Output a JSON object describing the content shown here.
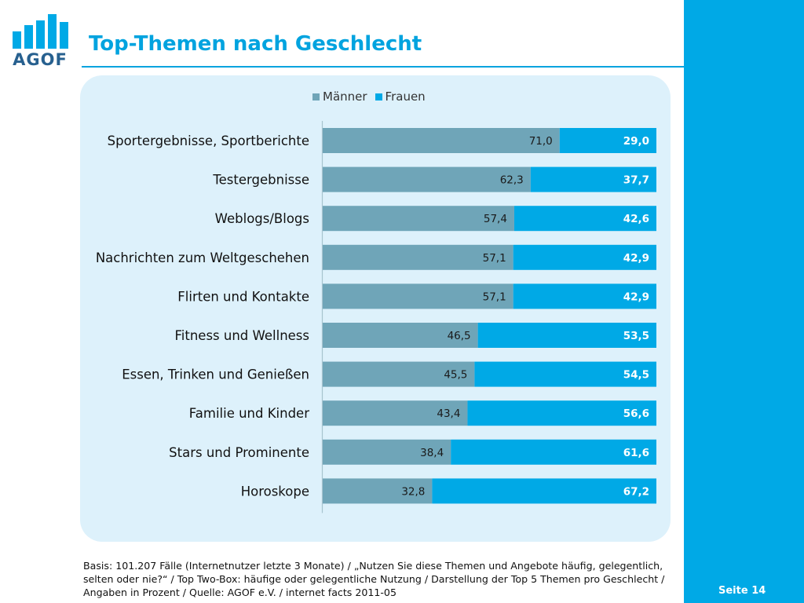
{
  "title": "Top-Themen nach Geschlecht",
  "logo": {
    "text": "AGOF",
    "color": "#27608f"
  },
  "page_number": "Seite 14",
  "footnote": "Basis: 101.207 Fälle (Internetnutzer letzte 3 Monate) / „Nutzen Sie diese Themen und Angebote häufig, gelegentlich, selten oder nie?“ / Top Two-Box: häufige oder gelegentliche Nutzung / Darstellung der Top 5 Themen pro Geschlecht / Angaben in Prozent / Quelle: AGOF e.V. / internet facts 2011-05",
  "colors": {
    "accent": "#00a3df",
    "sidebar": "#00a9e6",
    "panel": "#ddf1fb",
    "maenner": "#6fa5b8",
    "frauen": "#00a9e6"
  },
  "chart_data": {
    "type": "bar",
    "orientation": "horizontal",
    "stacked": true,
    "categories": [
      "Sportergebnisse, Sportberichte",
      "Testergebnisse",
      "Weblogs/Blogs",
      "Nachrichten zum Weltgeschehen",
      "Flirten und Kontakte",
      "Fitness und Wellness",
      "Essen, Trinken und Genießen",
      "Familie und Kinder",
      "Stars und Prominente",
      "Horoskope"
    ],
    "series": [
      {
        "name": "Männer",
        "color": "#6fa5b8",
        "values": [
          71.0,
          62.3,
          57.4,
          57.1,
          57.1,
          46.5,
          45.5,
          43.4,
          38.4,
          32.8
        ],
        "labels": [
          "71,0",
          "62,3",
          "57,4",
          "57,1",
          "57,1",
          "46,5",
          "45,5",
          "43,4",
          "38,4",
          "32,8"
        ]
      },
      {
        "name": "Frauen",
        "color": "#00a9e6",
        "values": [
          29.0,
          37.7,
          42.6,
          42.9,
          42.9,
          53.5,
          54.5,
          56.6,
          61.6,
          67.2
        ],
        "labels": [
          "29,0",
          "37,7",
          "42,6",
          "42,9",
          "42,9",
          "53,5",
          "54,5",
          "56,6",
          "61,6",
          "67,2"
        ]
      }
    ],
    "xlim": [
      0,
      100
    ],
    "legend": "top-center",
    "grid": false
  }
}
